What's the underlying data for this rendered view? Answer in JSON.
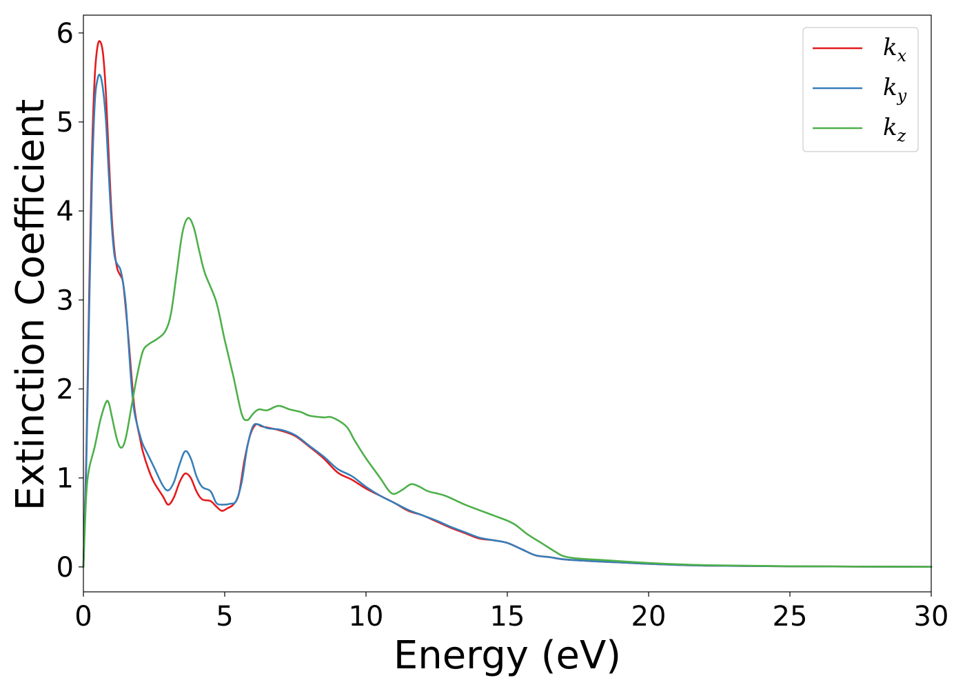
{
  "chart_data": {
    "type": "line",
    "xlabel": "Energy (eV)",
    "ylabel": "Extinction Coefficient",
    "xlim": [
      0,
      30
    ],
    "ylim": [
      -0.28,
      6.2
    ],
    "xticks": [
      0,
      5,
      10,
      15,
      20,
      25,
      30
    ],
    "yticks": [
      0,
      1,
      2,
      3,
      4,
      5,
      6
    ],
    "grid": false,
    "legend_position": "top-right",
    "series": [
      {
        "name": "k_x",
        "label_main": "k",
        "label_sub": "x",
        "color": "#e41a1c",
        "points": [
          [
            0,
            0
          ],
          [
            0.1,
            1.2
          ],
          [
            0.2,
            3.0
          ],
          [
            0.3,
            4.6
          ],
          [
            0.4,
            5.5
          ],
          [
            0.5,
            5.85
          ],
          [
            0.6,
            5.9
          ],
          [
            0.7,
            5.75
          ],
          [
            0.8,
            5.3
          ],
          [
            0.9,
            4.6
          ],
          [
            1.0,
            3.95
          ],
          [
            1.1,
            3.55
          ],
          [
            1.2,
            3.35
          ],
          [
            1.3,
            3.28
          ],
          [
            1.4,
            3.2
          ],
          [
            1.5,
            2.9
          ],
          [
            1.6,
            2.55
          ],
          [
            1.7,
            2.15
          ],
          [
            1.8,
            1.8
          ],
          [
            1.9,
            1.6
          ],
          [
            2.0,
            1.45
          ],
          [
            2.1,
            1.3
          ],
          [
            2.3,
            1.1
          ],
          [
            2.5,
            0.95
          ],
          [
            2.8,
            0.8
          ],
          [
            3.0,
            0.7
          ],
          [
            3.2,
            0.78
          ],
          [
            3.4,
            0.95
          ],
          [
            3.6,
            1.05
          ],
          [
            3.8,
            1.0
          ],
          [
            4.0,
            0.85
          ],
          [
            4.2,
            0.76
          ],
          [
            4.5,
            0.74
          ],
          [
            4.7,
            0.68
          ],
          [
            4.9,
            0.63
          ],
          [
            5.1,
            0.66
          ],
          [
            5.3,
            0.7
          ],
          [
            5.5,
            0.82
          ],
          [
            5.7,
            1.2
          ],
          [
            5.9,
            1.48
          ],
          [
            6.1,
            1.6
          ],
          [
            6.3,
            1.58
          ],
          [
            6.6,
            1.56
          ],
          [
            7.0,
            1.53
          ],
          [
            7.5,
            1.47
          ],
          [
            8.0,
            1.35
          ],
          [
            8.5,
            1.22
          ],
          [
            9.0,
            1.06
          ],
          [
            9.5,
            0.98
          ],
          [
            10.0,
            0.88
          ],
          [
            10.5,
            0.8
          ],
          [
            11.0,
            0.72
          ],
          [
            11.5,
            0.63
          ],
          [
            12.0,
            0.58
          ],
          [
            12.5,
            0.51
          ],
          [
            13.0,
            0.44
          ],
          [
            13.5,
            0.38
          ],
          [
            14.0,
            0.32
          ],
          [
            14.5,
            0.3
          ],
          [
            15.0,
            0.27
          ],
          [
            15.5,
            0.2
          ],
          [
            16.0,
            0.13
          ],
          [
            16.5,
            0.11
          ],
          [
            17.0,
            0.085
          ],
          [
            18.0,
            0.065
          ],
          [
            19.0,
            0.05
          ],
          [
            20.0,
            0.035
          ],
          [
            22.0,
            0.015
          ],
          [
            25.0,
            0.007
          ],
          [
            30.0,
            0.001
          ]
        ]
      },
      {
        "name": "k_y",
        "label_main": "k",
        "label_sub": "y",
        "color": "#377eb8",
        "points": [
          [
            0,
            0
          ],
          [
            0.1,
            1.1
          ],
          [
            0.2,
            2.8
          ],
          [
            0.3,
            4.3
          ],
          [
            0.4,
            5.2
          ],
          [
            0.5,
            5.48
          ],
          [
            0.6,
            5.52
          ],
          [
            0.7,
            5.35
          ],
          [
            0.8,
            5.0
          ],
          [
            0.9,
            4.4
          ],
          [
            1.0,
            3.85
          ],
          [
            1.1,
            3.5
          ],
          [
            1.2,
            3.4
          ],
          [
            1.3,
            3.35
          ],
          [
            1.4,
            3.2
          ],
          [
            1.5,
            2.95
          ],
          [
            1.6,
            2.5
          ],
          [
            1.7,
            2.05
          ],
          [
            1.8,
            1.75
          ],
          [
            1.9,
            1.6
          ],
          [
            2.0,
            1.48
          ],
          [
            2.1,
            1.38
          ],
          [
            2.3,
            1.25
          ],
          [
            2.5,
            1.12
          ],
          [
            2.8,
            0.92
          ],
          [
            3.0,
            0.86
          ],
          [
            3.2,
            0.95
          ],
          [
            3.4,
            1.15
          ],
          [
            3.6,
            1.3
          ],
          [
            3.8,
            1.22
          ],
          [
            4.0,
            1.02
          ],
          [
            4.2,
            0.9
          ],
          [
            4.5,
            0.85
          ],
          [
            4.7,
            0.72
          ],
          [
            4.9,
            0.7
          ],
          [
            5.2,
            0.71
          ],
          [
            5.4,
            0.74
          ],
          [
            5.6,
            0.95
          ],
          [
            5.8,
            1.35
          ],
          [
            6.0,
            1.58
          ],
          [
            6.2,
            1.6
          ],
          [
            6.5,
            1.56
          ],
          [
            7.0,
            1.54
          ],
          [
            7.5,
            1.48
          ],
          [
            8.0,
            1.36
          ],
          [
            8.5,
            1.24
          ],
          [
            9.0,
            1.1
          ],
          [
            9.5,
            1.02
          ],
          [
            10.0,
            0.9
          ],
          [
            10.5,
            0.8
          ],
          [
            11.0,
            0.72
          ],
          [
            11.5,
            0.64
          ],
          [
            12.0,
            0.58
          ],
          [
            12.5,
            0.52
          ],
          [
            13.0,
            0.45
          ],
          [
            13.5,
            0.39
          ],
          [
            14.0,
            0.33
          ],
          [
            14.5,
            0.3
          ],
          [
            15.0,
            0.27
          ],
          [
            15.5,
            0.2
          ],
          [
            16.0,
            0.13
          ],
          [
            16.5,
            0.11
          ],
          [
            17.0,
            0.085
          ],
          [
            18.0,
            0.065
          ],
          [
            19.0,
            0.05
          ],
          [
            20.0,
            0.035
          ],
          [
            22.0,
            0.015
          ],
          [
            25.0,
            0.007
          ],
          [
            30.0,
            0.001
          ]
        ]
      },
      {
        "name": "k_z",
        "label_main": "k",
        "label_sub": "z",
        "color": "#4daf4a",
        "points": [
          [
            0,
            0
          ],
          [
            0.1,
            0.8
          ],
          [
            0.2,
            1.1
          ],
          [
            0.4,
            1.35
          ],
          [
            0.6,
            1.65
          ],
          [
            0.8,
            1.85
          ],
          [
            0.9,
            1.84
          ],
          [
            1.0,
            1.7
          ],
          [
            1.2,
            1.42
          ],
          [
            1.35,
            1.34
          ],
          [
            1.5,
            1.45
          ],
          [
            1.7,
            1.8
          ],
          [
            1.9,
            2.15
          ],
          [
            2.1,
            2.42
          ],
          [
            2.3,
            2.5
          ],
          [
            2.6,
            2.56
          ],
          [
            2.9,
            2.65
          ],
          [
            3.1,
            2.85
          ],
          [
            3.3,
            3.3
          ],
          [
            3.5,
            3.75
          ],
          [
            3.7,
            3.92
          ],
          [
            3.9,
            3.82
          ],
          [
            4.1,
            3.55
          ],
          [
            4.3,
            3.3
          ],
          [
            4.7,
            2.98
          ],
          [
            5.0,
            2.55
          ],
          [
            5.3,
            2.15
          ],
          [
            5.6,
            1.72
          ],
          [
            5.8,
            1.65
          ],
          [
            6.0,
            1.72
          ],
          [
            6.2,
            1.77
          ],
          [
            6.5,
            1.76
          ],
          [
            6.9,
            1.81
          ],
          [
            7.3,
            1.77
          ],
          [
            7.7,
            1.74
          ],
          [
            8.0,
            1.7
          ],
          [
            8.5,
            1.68
          ],
          [
            8.8,
            1.68
          ],
          [
            9.3,
            1.58
          ],
          [
            9.6,
            1.42
          ],
          [
            10.0,
            1.22
          ],
          [
            10.5,
            1.0
          ],
          [
            10.8,
            0.86
          ],
          [
            11.0,
            0.82
          ],
          [
            11.3,
            0.87
          ],
          [
            11.6,
            0.93
          ],
          [
            11.9,
            0.9
          ],
          [
            12.2,
            0.85
          ],
          [
            12.8,
            0.8
          ],
          [
            13.5,
            0.7
          ],
          [
            14.5,
            0.58
          ],
          [
            15.0,
            0.52
          ],
          [
            15.3,
            0.47
          ],
          [
            15.7,
            0.37
          ],
          [
            16.2,
            0.27
          ],
          [
            16.7,
            0.17
          ],
          [
            17.0,
            0.12
          ],
          [
            17.5,
            0.095
          ],
          [
            18.5,
            0.075
          ],
          [
            20.0,
            0.045
          ],
          [
            22.0,
            0.02
          ],
          [
            25.0,
            0.008
          ],
          [
            30.0,
            0.001
          ]
        ]
      }
    ]
  }
}
